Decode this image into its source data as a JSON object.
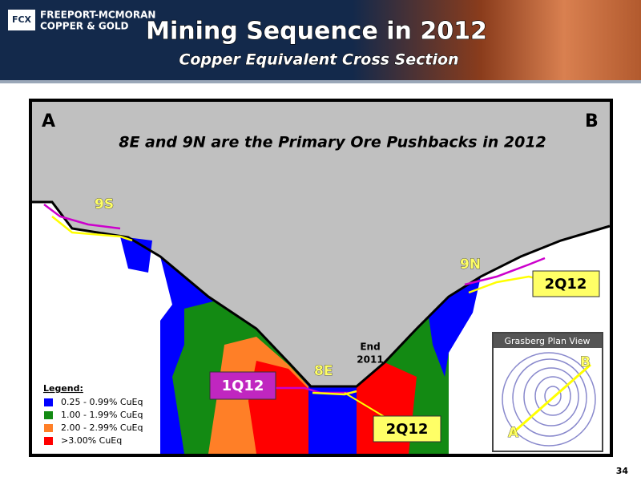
{
  "header": {
    "logo_line1": "FREEPORT-MCMORAN",
    "logo_line2": "COPPER & GOLD",
    "title": "Mining Sequence in 2012",
    "subtitle": "Copper Equivalent Cross Section"
  },
  "section": {
    "corner_left": "A",
    "corner_right": "B",
    "caption": "8E and 9N are the Primary Ore Pushbacks in 2012",
    "pushbacks": [
      "9S",
      "9N",
      "8E"
    ],
    "callouts": [
      "2Q12",
      "1Q12",
      "2Q12"
    ],
    "end_label": [
      "End",
      "2011"
    ],
    "legend": {
      "title": "Legend:",
      "items": [
        {
          "label": "0.25 - 0.99% CuEq",
          "color": "#0000ff"
        },
        {
          "label": "1.00 - 1.99% CuEq",
          "color": "#138a13"
        },
        {
          "label": "2.00 - 2.99% CuEq",
          "color": "#ff7f27"
        },
        {
          "label": ">3.00% CuEq",
          "color": "#ff0000"
        }
      ]
    }
  },
  "inset": {
    "title": "Grasberg Plan View",
    "end_a": "A",
    "end_b": "B"
  },
  "page_number": "34"
}
